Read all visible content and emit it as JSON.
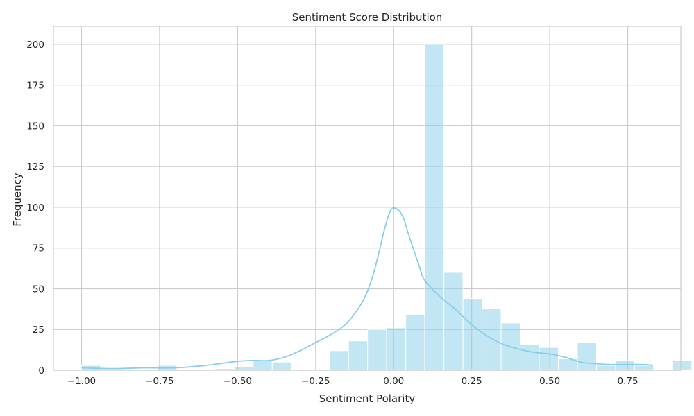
{
  "chart_data": {
    "type": "bar",
    "title": "Sentiment Score Distribution",
    "xlabel": "Sentiment Polarity",
    "ylabel": "Frequency",
    "xlim": [
      -1.09,
      0.92
    ],
    "ylim": [
      0,
      211
    ],
    "x_ticks": [
      -1.0,
      -0.75,
      -0.5,
      -0.25,
      0.0,
      0.25,
      0.5,
      0.75
    ],
    "x_tick_labels": [
      "−1.00",
      "−0.75",
      "−0.50",
      "−0.25",
      "0.00",
      "0.25",
      "0.50",
      "0.75"
    ],
    "y_ticks": [
      0,
      25,
      50,
      75,
      100,
      125,
      150,
      175,
      200
    ],
    "y_tick_labels": [
      "0",
      "25",
      "50",
      "75",
      "100",
      "125",
      "150",
      "175",
      "200"
    ],
    "grid": true,
    "bar_color": "#87ceeb",
    "bin_start": -1.0,
    "bin_width": 0.0611,
    "values": [
      3,
      0,
      0,
      0,
      3,
      0,
      0,
      1,
      2,
      6,
      5,
      0,
      0,
      12,
      18,
      25,
      26,
      34,
      200,
      60,
      44,
      38,
      29,
      16,
      14,
      7,
      17,
      3,
      6,
      3,
      0,
      6
    ],
    "kde": {
      "x": [
        -1.0,
        -0.9,
        -0.8,
        -0.7,
        -0.6,
        -0.5,
        -0.45,
        -0.4,
        -0.35,
        -0.3,
        -0.25,
        -0.2,
        -0.15,
        -0.1,
        -0.07,
        -0.05,
        -0.03,
        -0.01,
        0.01,
        0.03,
        0.05,
        0.08,
        0.1,
        0.15,
        0.2,
        0.25,
        0.3,
        0.35,
        0.4,
        0.45,
        0.5,
        0.55,
        0.6,
        0.65,
        0.7,
        0.75,
        0.8,
        0.83
      ],
      "y": [
        1.5,
        1,
        1.5,
        1.5,
        3,
        5.5,
        6,
        6,
        8,
        12,
        17,
        22,
        29,
        42,
        56,
        70,
        86,
        98,
        99,
        94,
        82,
        65,
        55,
        45,
        37,
        28,
        21,
        16,
        13,
        11,
        10,
        8,
        5,
        4,
        3.5,
        3.5,
        3.5,
        3
      ]
    }
  }
}
